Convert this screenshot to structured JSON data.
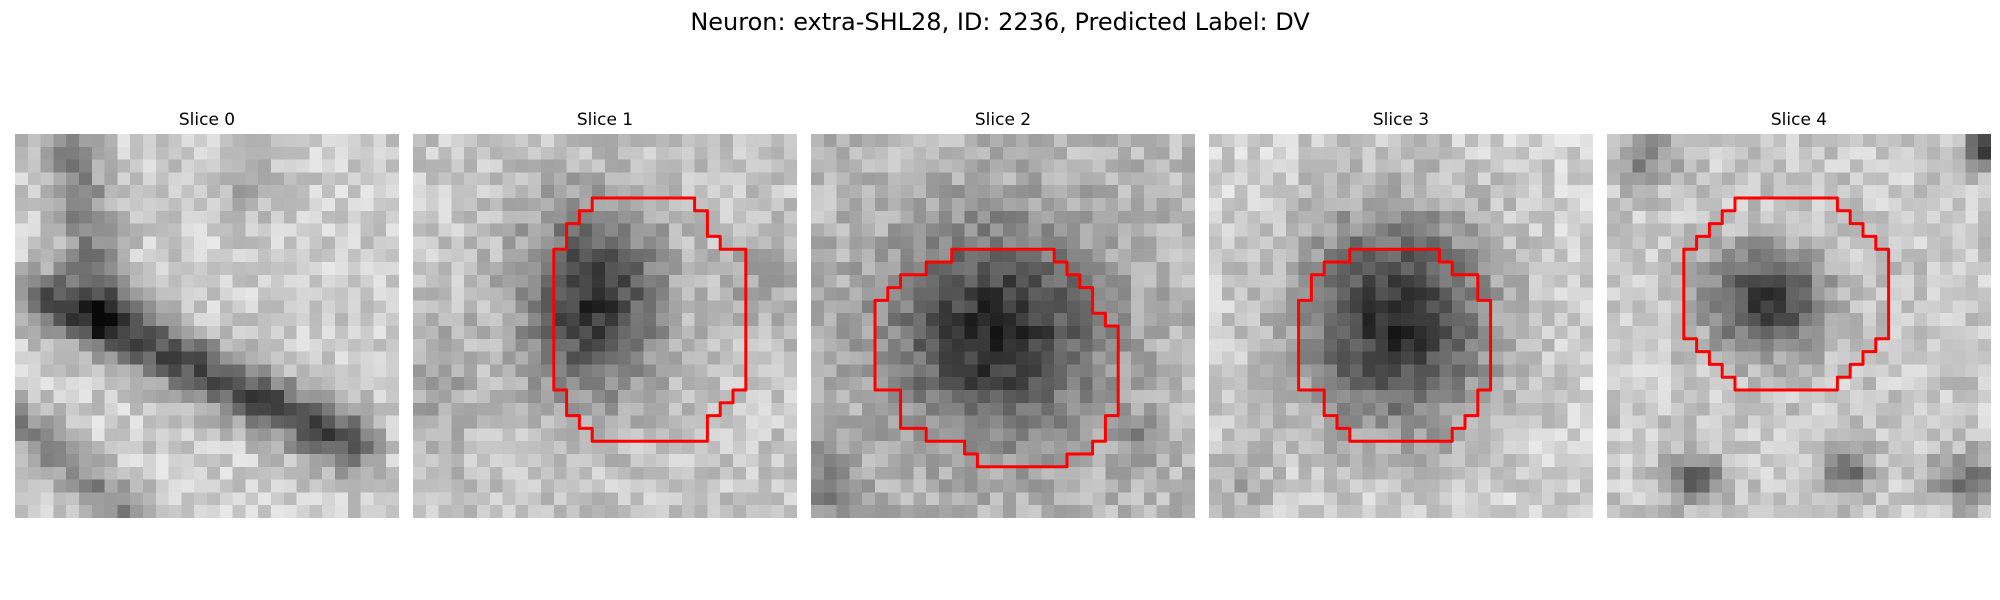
{
  "figure": {
    "title": "Neuron: extra-SHL28, ID: 2236, Predicted Label: DV"
  },
  "image_grid": {
    "rows": 30,
    "cols": 30
  },
  "contour_color": "#ff0000",
  "panels": [
    {
      "title": "Slice 0",
      "has_contour": false
    },
    {
      "title": "Slice 1",
      "has_contour": true
    },
    {
      "title": "Slice 2",
      "has_contour": true
    },
    {
      "title": "Slice 3",
      "has_contour": true
    },
    {
      "title": "Slice 4",
      "has_contour": true
    }
  ]
}
